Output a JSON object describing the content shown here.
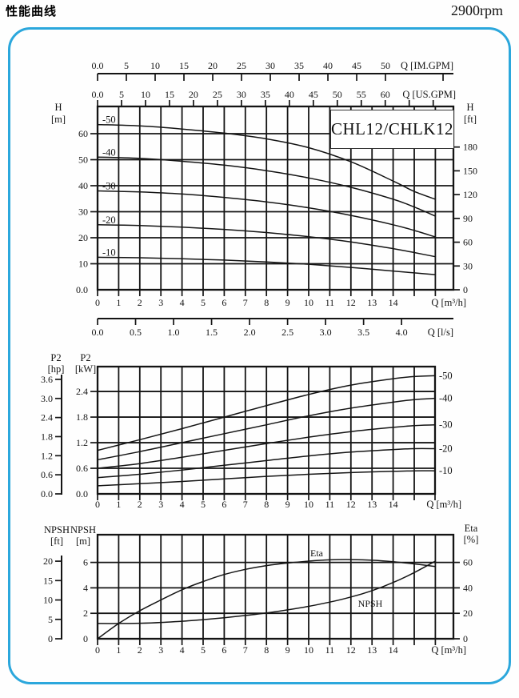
{
  "page": {
    "title": "性能曲线",
    "rpm": "2900rpm",
    "model": "CHL12/CHLK12",
    "accent_color": "#2ba7dc",
    "curve_color": "#141414"
  },
  "chart_data": [
    {
      "name": "head-vs-flow",
      "type": "line",
      "title": "CHL12/CHLK12",
      "legend_position": "inline-left",
      "x_axis": {
        "label": "Q [m³/h]",
        "range": [
          0,
          16.9
        ],
        "ticks": [
          0,
          1,
          2,
          3,
          4,
          5,
          6,
          7,
          8,
          9,
          10,
          11,
          12,
          13,
          14
        ],
        "tick_labels": [
          "0",
          "1",
          "2",
          "3",
          "4",
          "5",
          "6",
          "7",
          "8",
          "9",
          "10",
          "11",
          "12",
          "13",
          "14"
        ],
        "unlabeled_ticks": [
          15,
          16
        ],
        "grid": [
          1,
          2,
          3,
          4,
          5,
          6,
          7,
          8,
          9,
          10,
          11,
          12,
          13,
          14,
          15,
          16
        ]
      },
      "x_top_axes": [
        {
          "label": "Q [IM.GPM]",
          "m3h_per_unit": 0.27276,
          "ticks": [
            0,
            5,
            10,
            15,
            20,
            25,
            30,
            35,
            40,
            45,
            50
          ],
          "tick_labels": [
            "0.0",
            "5",
            "10",
            "15",
            "20",
            "25",
            "30",
            "35",
            "40",
            "45",
            "50"
          ],
          "unlabeled_ticks": [
            60
          ]
        },
        {
          "label": "Q [US.GPM]",
          "m3h_per_unit": 0.22712,
          "ticks": [
            0,
            5,
            10,
            15,
            20,
            25,
            30,
            35,
            40,
            45,
            50,
            55,
            60
          ],
          "tick_labels": [
            "0.0",
            "5",
            "10",
            "15",
            "20",
            "25",
            "30",
            "35",
            "40",
            "45",
            "50",
            "55",
            "60"
          ],
          "unlabeled_ticks": [
            65,
            70
          ]
        }
      ],
      "x_bottom_axes": [
        {
          "label": "Q [l/s]",
          "m3h_per_unit": 3.6,
          "ticks": [
            0,
            0.5,
            1,
            1.5,
            2,
            2.5,
            3,
            3.5,
            4
          ],
          "tick_labels": [
            "0.0",
            "0.5",
            "1.0",
            "1.5",
            "2.0",
            "2.5",
            "3.0",
            "3.5",
            "4.0"
          ]
        }
      ],
      "y_axis": {
        "label_lines": [
          "H",
          "[m]"
        ],
        "range": [
          0,
          70.5
        ],
        "ticks": [
          0,
          10,
          20,
          30,
          40,
          50,
          60
        ],
        "tick_labels": [
          "0.0",
          "10",
          "20",
          "30",
          "40",
          "50",
          "60"
        ],
        "grid": [
          10,
          20,
          30,
          40,
          50,
          60
        ]
      },
      "y_right_axis": {
        "label_lines": [
          "H",
          "[ft]"
        ],
        "m_per_unit": 0.3048,
        "ticks": [
          0,
          30,
          60,
          90,
          120,
          150,
          180
        ],
        "tick_labels": [
          "0",
          "30",
          "60",
          "90",
          "120",
          "150",
          "180"
        ]
      },
      "series": [
        {
          "name": "-50",
          "points": [
            [
              0,
              63.5
            ],
            [
              2,
              63.0
            ],
            [
              4,
              61.8
            ],
            [
              6,
              60.2
            ],
            [
              8,
              58.0
            ],
            [
              10,
              54.6
            ],
            [
              12,
              49.2
            ],
            [
              14,
              41.8
            ],
            [
              15,
              37.8
            ],
            [
              16,
              34.8
            ]
          ]
        },
        {
          "name": "-40",
          "points": [
            [
              0,
              51.0
            ],
            [
              2,
              50.5
            ],
            [
              4,
              49.4
            ],
            [
              6,
              47.9
            ],
            [
              8,
              45.8
            ],
            [
              10,
              43.0
            ],
            [
              12,
              39.4
            ],
            [
              14,
              34.8
            ],
            [
              15,
              31.8
            ],
            [
              16,
              28.3
            ]
          ]
        },
        {
          "name": "-30",
          "points": [
            [
              0,
              38.0
            ],
            [
              2,
              37.6
            ],
            [
              4,
              36.8
            ],
            [
              6,
              35.5
            ],
            [
              8,
              33.8
            ],
            [
              10,
              31.5
            ],
            [
              12,
              28.6
            ],
            [
              14,
              25.0
            ],
            [
              15,
              22.8
            ],
            [
              16,
              20.3
            ]
          ]
        },
        {
          "name": "-20",
          "points": [
            [
              0,
              25.0
            ],
            [
              2,
              24.7
            ],
            [
              4,
              24.1
            ],
            [
              6,
              23.2
            ],
            [
              8,
              22.0
            ],
            [
              10,
              20.4
            ],
            [
              12,
              18.4
            ],
            [
              14,
              15.8
            ],
            [
              15,
              14.3
            ],
            [
              16,
              12.7
            ]
          ]
        },
        {
          "name": "-10",
          "points": [
            [
              0,
              12.5
            ],
            [
              2,
              12.3
            ],
            [
              4,
              11.9
            ],
            [
              6,
              11.4
            ],
            [
              8,
              10.7
            ],
            [
              10,
              9.8
            ],
            [
              12,
              8.6
            ],
            [
              14,
              7.2
            ],
            [
              15,
              6.5
            ],
            [
              16,
              5.8
            ]
          ]
        }
      ]
    },
    {
      "name": "power-vs-flow",
      "type": "line",
      "legend_position": "outside-right",
      "x_axis": {
        "label": "Q [m³/h]",
        "range": [
          0,
          16
        ],
        "ticks": [
          0,
          1,
          2,
          3,
          4,
          5,
          6,
          7,
          8,
          9,
          10,
          11,
          12,
          13,
          14
        ],
        "tick_labels": [
          "0",
          "1",
          "2",
          "3",
          "4",
          "5",
          "6",
          "7",
          "8",
          "9",
          "10",
          "11",
          "12",
          "13",
          "14"
        ],
        "unlabeled_ticks": [
          15,
          16
        ],
        "grid": [
          1,
          2,
          3,
          4,
          5,
          6,
          7,
          8,
          9,
          10,
          11,
          12,
          13,
          14,
          15
        ]
      },
      "y_axis": {
        "label_lines": [
          "P2",
          "[kW]"
        ],
        "range": [
          0,
          2.98
        ],
        "ticks": [
          0,
          0.6,
          1.2,
          1.8,
          2.4
        ],
        "tick_labels": [
          "0.0",
          "0.6",
          "1.2",
          "1.8",
          "2.4"
        ],
        "grid": [
          0.6,
          1.2,
          1.8,
          2.4
        ]
      },
      "y_left_outer_axis": {
        "label_lines": [
          "P2",
          "[hp]"
        ],
        "kw_per_unit": 0.7457,
        "ticks": [
          0,
          0.6,
          1.2,
          1.8,
          2.4,
          3.0,
          3.6
        ],
        "tick_labels": [
          "0.0",
          "0.6",
          "1.2",
          "1.8",
          "2.4",
          "3.0",
          "3.6"
        ]
      },
      "series": [
        {
          "name": "-50",
          "points": [
            [
              0,
              1.02
            ],
            [
              2,
              1.27
            ],
            [
              4,
              1.53
            ],
            [
              6,
              1.8
            ],
            [
              8,
              2.07
            ],
            [
              10,
              2.33
            ],
            [
              12,
              2.55
            ],
            [
              14,
              2.7
            ],
            [
              15,
              2.75
            ],
            [
              16,
              2.77
            ]
          ]
        },
        {
          "name": "-40",
          "points": [
            [
              0,
              0.8
            ],
            [
              2,
              0.99
            ],
            [
              4,
              1.2
            ],
            [
              6,
              1.41
            ],
            [
              8,
              1.62
            ],
            [
              10,
              1.83
            ],
            [
              12,
              2.01
            ],
            [
              14,
              2.15
            ],
            [
              15,
              2.21
            ],
            [
              16,
              2.24
            ]
          ]
        },
        {
          "name": "-30",
          "points": [
            [
              0,
              0.6
            ],
            [
              2,
              0.71
            ],
            [
              4,
              0.86
            ],
            [
              6,
              1.02
            ],
            [
              8,
              1.18
            ],
            [
              10,
              1.33
            ],
            [
              12,
              1.46
            ],
            [
              14,
              1.56
            ],
            [
              15,
              1.6
            ],
            [
              16,
              1.62
            ]
          ]
        },
        {
          "name": "-20",
          "points": [
            [
              0,
              0.38
            ],
            [
              2,
              0.46
            ],
            [
              4,
              0.56
            ],
            [
              6,
              0.67
            ],
            [
              8,
              0.78
            ],
            [
              10,
              0.89
            ],
            [
              12,
              0.98
            ],
            [
              14,
              1.04
            ],
            [
              15,
              1.06
            ],
            [
              16,
              1.06
            ]
          ]
        },
        {
          "name": "-10",
          "points": [
            [
              0,
              0.19
            ],
            [
              2,
              0.24
            ],
            [
              4,
              0.29
            ],
            [
              6,
              0.35
            ],
            [
              8,
              0.41
            ],
            [
              10,
              0.46
            ],
            [
              12,
              0.5
            ],
            [
              14,
              0.53
            ],
            [
              15,
              0.54
            ],
            [
              16,
              0.54
            ]
          ]
        }
      ]
    },
    {
      "name": "npsh-eta-vs-flow",
      "type": "line",
      "legend_position": "inline-annotations",
      "x_axis": {
        "label": "Q [m³/h]",
        "range": [
          0,
          16.9
        ],
        "ticks": [
          0,
          1,
          2,
          3,
          4,
          5,
          6,
          7,
          8,
          9,
          10,
          11,
          12,
          13,
          14
        ],
        "tick_labels": [
          "0",
          "1",
          "2",
          "3",
          "4",
          "5",
          "6",
          "7",
          "8",
          "9",
          "10",
          "11",
          "12",
          "13",
          "14"
        ],
        "unlabeled_ticks": [
          15,
          16
        ],
        "grid": [
          1,
          2,
          3,
          4,
          5,
          6,
          7,
          8,
          9,
          10,
          11,
          12,
          13,
          14,
          15,
          16
        ]
      },
      "y_axis": {
        "label_lines": [
          "NPSH",
          "[m]"
        ],
        "range": [
          0,
          8.2
        ],
        "ticks": [
          0,
          2,
          4,
          6
        ],
        "tick_labels": [
          "0",
          "2",
          "4",
          "6"
        ],
        "grid": [
          2,
          4,
          6
        ]
      },
      "y_left_outer_axis": {
        "label_lines": [
          "NPSH",
          "[ft]"
        ],
        "m_per_unit": 0.3048,
        "ticks": [
          0,
          5,
          10,
          15,
          20
        ],
        "tick_labels": [
          "0",
          "5",
          "10",
          "15",
          "20"
        ]
      },
      "y_right_axis": {
        "label_lines": [
          "Eta",
          "[%]"
        ],
        "m_per_unit": 0.1,
        "ticks": [
          0,
          20,
          40,
          60
        ],
        "tick_labels": [
          "0",
          "20",
          "40",
          "60"
        ]
      },
      "series": [
        {
          "name": "Eta",
          "unit": "%",
          "points": [
            [
              0,
              0
            ],
            [
              1,
              12
            ],
            [
              2,
              22
            ],
            [
              3,
              30.5
            ],
            [
              4,
              38.5
            ],
            [
              5,
              45
            ],
            [
              6,
              50.5
            ],
            [
              7,
              54.5
            ],
            [
              8,
              57.5
            ],
            [
              9,
              59.5
            ],
            [
              10,
              61
            ],
            [
              11,
              62
            ],
            [
              12,
              62.2
            ],
            [
              13,
              61.7
            ],
            [
              14,
              60.5
            ],
            [
              15,
              58.8
            ],
            [
              16,
              56.8
            ]
          ]
        },
        {
          "name": "NPSH",
          "unit": "m",
          "points": [
            [
              0,
              1.2
            ],
            [
              1,
              1.2
            ],
            [
              2,
              1.22
            ],
            [
              3,
              1.28
            ],
            [
              4,
              1.38
            ],
            [
              5,
              1.5
            ],
            [
              6,
              1.65
            ],
            [
              7,
              1.83
            ],
            [
              8,
              2.03
            ],
            [
              9,
              2.27
            ],
            [
              10,
              2.55
            ],
            [
              11,
              2.88
            ],
            [
              12,
              3.28
            ],
            [
              13,
              3.78
            ],
            [
              14,
              4.42
            ],
            [
              15,
              5.2
            ],
            [
              16,
              6.1
            ]
          ]
        }
      ]
    }
  ]
}
